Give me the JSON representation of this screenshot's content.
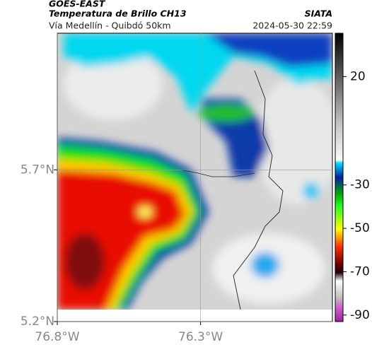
{
  "header": {
    "title": "GOES-EAST",
    "subtitle": "Temperatura de Brillo CH13",
    "source": "SIATA",
    "route": "Vía Medellín - Quibdó 50km",
    "timestamp": "2024-05-30 22:59"
  },
  "map": {
    "xlim": [
      -76.8,
      -75.84
    ],
    "ylim": [
      5.2,
      6.15
    ],
    "xticks": [
      {
        "value": -76.8,
        "label": "76.8°W"
      },
      {
        "value": -76.3,
        "label": "76.3°W"
      }
    ],
    "yticks": [
      {
        "value": 5.7,
        "label": "5.7°N"
      },
      {
        "value": 5.2,
        "label": "5.2°N"
      }
    ],
    "grid": true
  },
  "colorbar": {
    "lim": [
      -93,
      40
    ],
    "ticks": [
      20,
      -30,
      -50,
      -70,
      -90
    ]
  }
}
